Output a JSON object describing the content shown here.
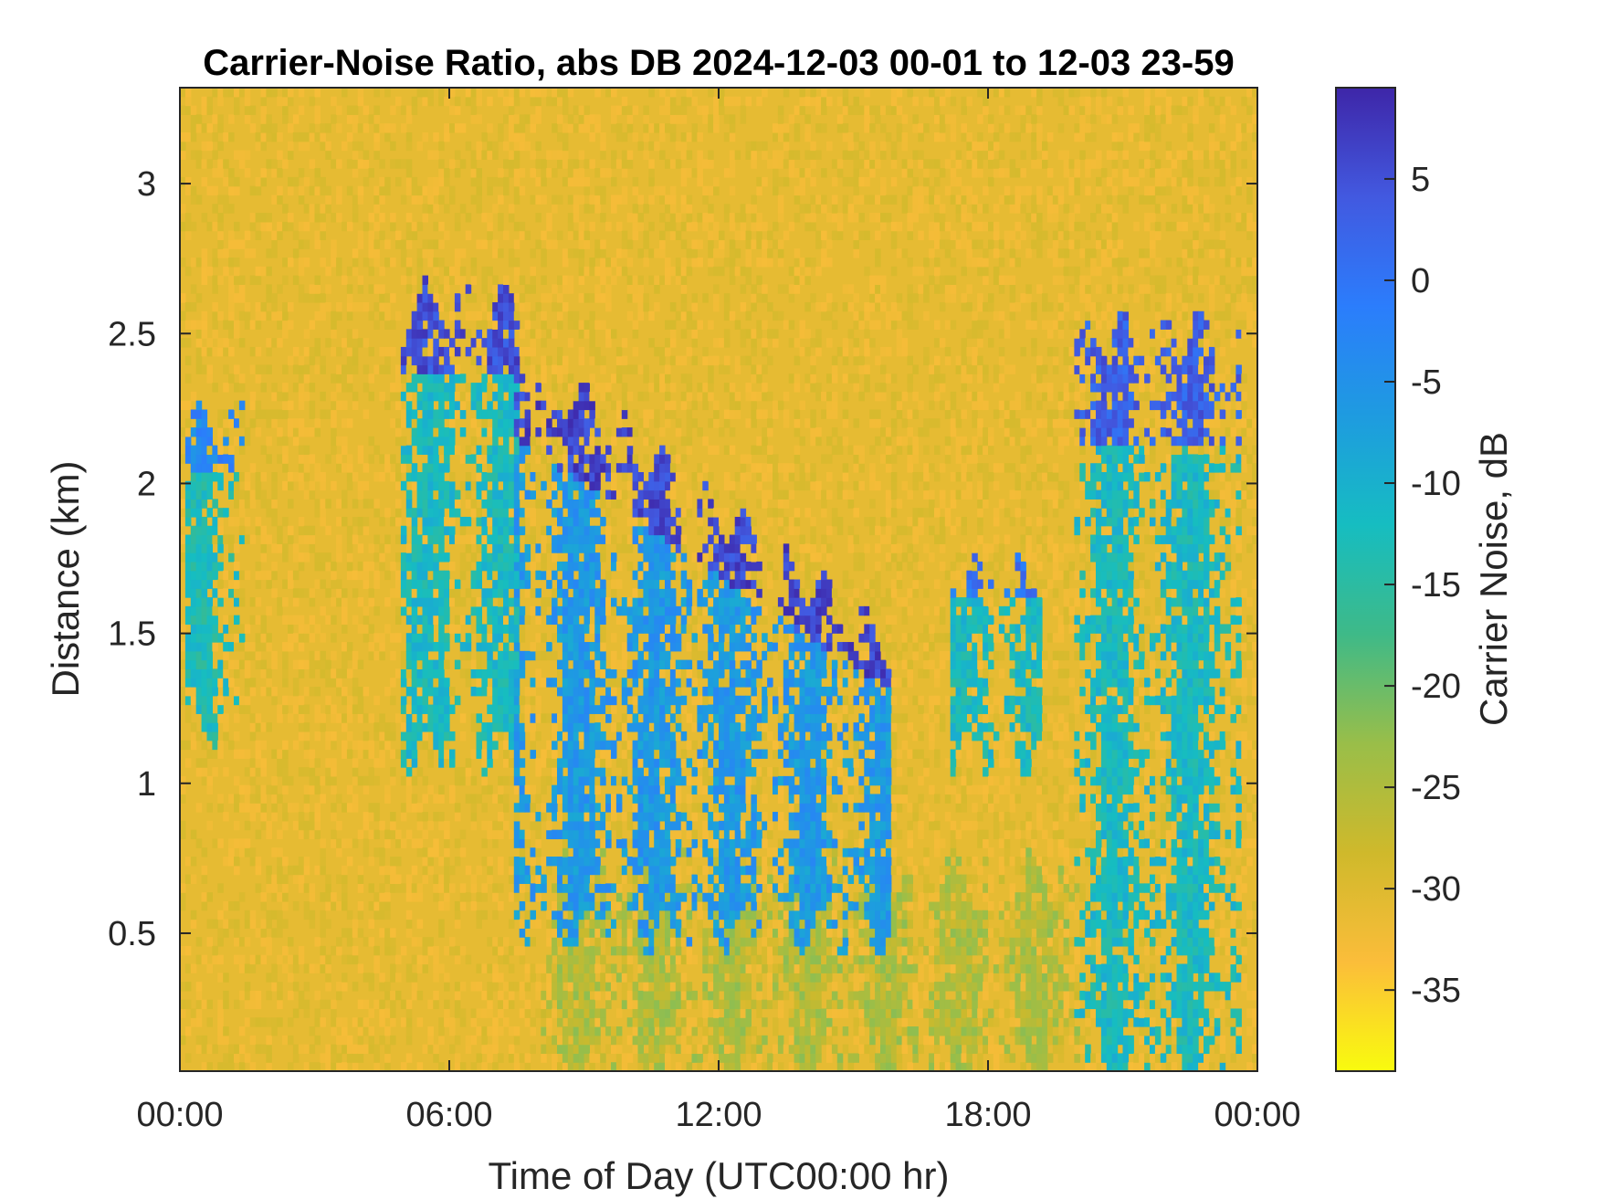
{
  "chart_data": {
    "type": "heatmap",
    "title": "Carrier-Noise Ratio, abs DB 2024-12-03 00-01 to 12-03 23-59",
    "xlabel": "Time of Day (UTC00:00 hr)",
    "ylabel": "Distance (km)",
    "xlim_hours": [
      0,
      24
    ],
    "ylim_km": [
      0.04,
      3.32
    ],
    "x_ticks": [
      {
        "value": 0,
        "label": "00:00"
      },
      {
        "value": 6,
        "label": "06:00"
      },
      {
        "value": 12,
        "label": "12:00"
      },
      {
        "value": 18,
        "label": "18:00"
      },
      {
        "value": 24,
        "label": "00:00"
      }
    ],
    "y_ticks": [
      {
        "value": 0.5,
        "label": "0.5"
      },
      {
        "value": 1,
        "label": "1"
      },
      {
        "value": 1.5,
        "label": "1.5"
      },
      {
        "value": 2,
        "label": "2"
      },
      {
        "value": 2.5,
        "label": "2.5"
      },
      {
        "value": 3,
        "label": "3"
      }
    ],
    "grid": false,
    "colorbar": {
      "label": "Carrier Noise, dB",
      "range": [
        -39,
        9.5
      ],
      "ticks": [
        {
          "value": 5,
          "label": "5"
        },
        {
          "value": 0,
          "label": "0"
        },
        {
          "value": -5,
          "label": "-5"
        },
        {
          "value": -10,
          "label": "-10"
        },
        {
          "value": -15,
          "label": "-15"
        },
        {
          "value": -20,
          "label": "-20"
        },
        {
          "value": -25,
          "label": "-25"
        },
        {
          "value": -30,
          "label": "-30"
        },
        {
          "value": -35,
          "label": "-35"
        }
      ],
      "colormap": "parula",
      "colormap_stops": [
        "#f9fb0e",
        "#fbbd3a",
        "#cfb92b",
        "#99be49",
        "#3eba88",
        "#16bdc1",
        "#1e9be0",
        "#2b7dfc",
        "#4259e0",
        "#3e26a8"
      ]
    },
    "background_value": -31,
    "features": [
      {
        "name": "echo band 00:20-01:30",
        "x_range": [
          0.1,
          1.4
        ],
        "y_range": [
          1.2,
          2.2
        ],
        "core_value": -13,
        "top_value": -3
      },
      {
        "name": "elevated layer 05:00-07:30",
        "x_range": [
          4.9,
          7.5
        ],
        "y_range": [
          1.1,
          2.6
        ],
        "core_value": -12,
        "top_value": 5
      },
      {
        "name": "descending layer 07:30-15:45",
        "x_range": [
          7.4,
          15.8
        ],
        "y_top_start": 2.45,
        "y_top_end": 1.45,
        "y_bottom": 0.5,
        "core_value": -6,
        "top_value": 6
      },
      {
        "name": "scattered echoes 17:00-19:00",
        "x_range": [
          17.2,
          19.2
        ],
        "y_range": [
          1.1,
          1.7
        ],
        "core_value": -12,
        "top_value": 0
      },
      {
        "name": "late cloud 20:00-23:40",
        "x_range": [
          19.9,
          23.6
        ],
        "y_range": [
          0.05,
          2.5
        ],
        "core_value": -12,
        "top_value": 3
      },
      {
        "name": "near-surface layer",
        "x_range": [
          8,
          20
        ],
        "y_range": [
          0.05,
          0.7
        ],
        "core_value": -25
      }
    ]
  }
}
